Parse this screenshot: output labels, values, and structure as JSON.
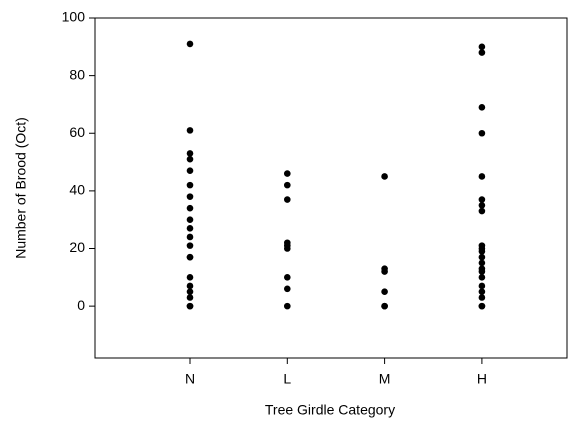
{
  "chart_data": {
    "type": "scatter",
    "x_label": "Tree Girdle Category",
    "y_label": "Number of Brood (Oct)",
    "categories": [
      "N",
      "L",
      "M",
      "H"
    ],
    "values": [
      [
        91,
        61,
        53,
        51,
        47,
        42,
        38,
        34,
        30,
        27,
        24,
        21,
        17,
        17,
        10,
        7,
        5,
        3,
        0,
        0
      ],
      [
        46,
        42,
        37,
        22,
        21,
        20,
        10,
        6,
        0
      ],
      [
        45,
        13,
        12,
        5,
        0,
        0
      ],
      [
        90,
        88,
        69,
        60,
        45,
        37,
        35,
        33,
        21,
        20,
        19,
        17,
        15,
        13,
        12,
        10,
        7,
        5,
        3,
        0,
        0
      ]
    ],
    "color": "#000000",
    "ylim": [
      -18,
      100
    ],
    "yticks": [
      0,
      20,
      40,
      60,
      80,
      100
    ],
    "grid": false
  }
}
